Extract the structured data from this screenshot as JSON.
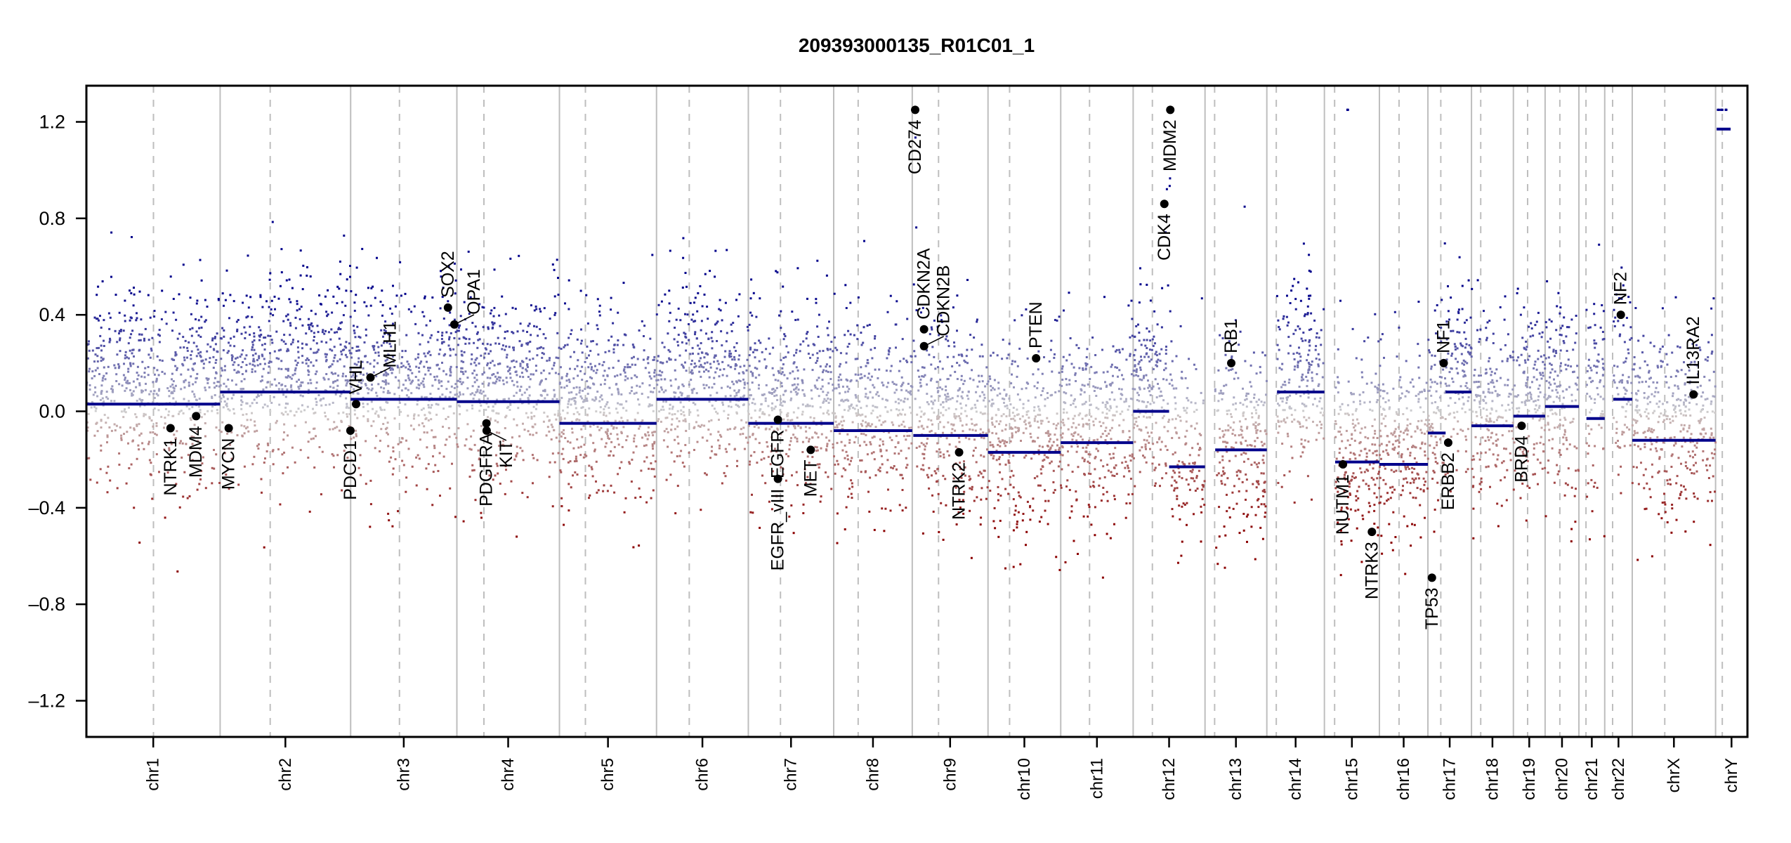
{
  "chart_data": {
    "type": "scatter",
    "title": "209393000135_R01C01_1",
    "xlabel": "",
    "ylabel": "",
    "ylim": [
      -1.35,
      1.35
    ],
    "grid": false,
    "legend": "none",
    "yticks": [
      {
        "value": 1.2,
        "label": "1.2"
      },
      {
        "value": 0.8,
        "label": "0.8"
      },
      {
        "value": 0.4,
        "label": "0.4"
      },
      {
        "value": 0.0,
        "label": "0.0"
      },
      {
        "value": -0.4,
        "label": "–0.4"
      },
      {
        "value": -0.8,
        "label": "–0.8"
      },
      {
        "value": -1.2,
        "label": "–1.2"
      }
    ],
    "colors": {
      "gain": "#00008b",
      "neutral": "#cfcfcf",
      "loss": "#8b0000",
      "segment": "#00008b",
      "boundary": "#bebebe",
      "gene": "#000000"
    },
    "chromosomes": [
      {
        "name": "chr1",
        "length_mb": 249.25,
        "centromere_mb": 125.0
      },
      {
        "name": "chr2",
        "length_mb": 243.2,
        "centromere_mb": 93.3
      },
      {
        "name": "chr3",
        "length_mb": 198.0,
        "centromere_mb": 91.0
      },
      {
        "name": "chr4",
        "length_mb": 191.15,
        "centromere_mb": 50.4
      },
      {
        "name": "chr5",
        "length_mb": 180.9,
        "centromere_mb": 48.4
      },
      {
        "name": "chr6",
        "length_mb": 171.1,
        "centromere_mb": 61.0
      },
      {
        "name": "chr7",
        "length_mb": 159.1,
        "centromere_mb": 59.9
      },
      {
        "name": "chr8",
        "length_mb": 146.4,
        "centromere_mb": 45.6
      },
      {
        "name": "chr9",
        "length_mb": 141.2,
        "centromere_mb": 49.0
      },
      {
        "name": "chr10",
        "length_mb": 135.5,
        "centromere_mb": 40.2
      },
      {
        "name": "chr11",
        "length_mb": 135.0,
        "centromere_mb": 53.7
      },
      {
        "name": "chr12",
        "length_mb": 133.9,
        "centromere_mb": 35.8
      },
      {
        "name": "chr13",
        "length_mb": 115.2,
        "centromere_mb": 17.9
      },
      {
        "name": "chr14",
        "length_mb": 107.3,
        "centromere_mb": 17.6
      },
      {
        "name": "chr15",
        "length_mb": 102.5,
        "centromere_mb": 19.0
      },
      {
        "name": "chr16",
        "length_mb": 90.4,
        "centromere_mb": 36.6
      },
      {
        "name": "chr17",
        "length_mb": 81.2,
        "centromere_mb": 24.0
      },
      {
        "name": "chr18",
        "length_mb": 78.1,
        "centromere_mb": 17.2
      },
      {
        "name": "chr19",
        "length_mb": 59.1,
        "centromere_mb": 26.5
      },
      {
        "name": "chr20",
        "length_mb": 63.0,
        "centromere_mb": 27.5
      },
      {
        "name": "chr21",
        "length_mb": 48.1,
        "centromere_mb": 13.2
      },
      {
        "name": "chr22",
        "length_mb": 51.3,
        "centromere_mb": 14.7
      },
      {
        "name": "chrX",
        "length_mb": 155.3,
        "centromere_mb": 60.6
      },
      {
        "name": "chrY",
        "length_mb": 59.4,
        "centromere_mb": 12.5
      }
    ],
    "segments": [
      {
        "chr": "chr1",
        "start_mb": 0,
        "end_mb": 249.25,
        "value": 0.03
      },
      {
        "chr": "chr2",
        "start_mb": 0,
        "end_mb": 243.2,
        "value": 0.08
      },
      {
        "chr": "chr3",
        "start_mb": 0,
        "end_mb": 198.0,
        "value": 0.05
      },
      {
        "chr": "chr4",
        "start_mb": 0,
        "end_mb": 191.15,
        "value": 0.04
      },
      {
        "chr": "chr5",
        "start_mb": 0,
        "end_mb": 180.9,
        "value": -0.05
      },
      {
        "chr": "chr6",
        "start_mb": 0,
        "end_mb": 171.1,
        "value": 0.05
      },
      {
        "chr": "chr7",
        "start_mb": 0,
        "end_mb": 159.1,
        "value": -0.05
      },
      {
        "chr": "chr8",
        "start_mb": 0,
        "end_mb": 146.4,
        "value": -0.08
      },
      {
        "chr": "chr9",
        "start_mb": 2,
        "end_mb": 141.2,
        "value": -0.1
      },
      {
        "chr": "chr10",
        "start_mb": 0,
        "end_mb": 135.5,
        "value": -0.17
      },
      {
        "chr": "chr11",
        "start_mb": 0,
        "end_mb": 135.0,
        "value": -0.13
      },
      {
        "chr": "chr12",
        "start_mb": 0,
        "end_mb": 67.0,
        "value": 0.0
      },
      {
        "chr": "chr12",
        "start_mb": 67.0,
        "end_mb": 133.9,
        "value": -0.23
      },
      {
        "chr": "chr13",
        "start_mb": 19.0,
        "end_mb": 115.2,
        "value": -0.16
      },
      {
        "chr": "chr14",
        "start_mb": 19.0,
        "end_mb": 107.3,
        "value": 0.08
      },
      {
        "chr": "chr15",
        "start_mb": 20.0,
        "end_mb": 102.5,
        "value": -0.21
      },
      {
        "chr": "chr16",
        "start_mb": 0,
        "end_mb": 90.4,
        "value": -0.22
      },
      {
        "chr": "chr17",
        "start_mb": 0,
        "end_mb": 33.0,
        "value": -0.09
      },
      {
        "chr": "chr17",
        "start_mb": 33.0,
        "end_mb": 81.2,
        "value": 0.08
      },
      {
        "chr": "chr18",
        "start_mb": 0,
        "end_mb": 78.1,
        "value": -0.06
      },
      {
        "chr": "chr19",
        "start_mb": 0,
        "end_mb": 59.1,
        "value": -0.02
      },
      {
        "chr": "chr20",
        "start_mb": 0,
        "end_mb": 63.0,
        "value": 0.02
      },
      {
        "chr": "chr21",
        "start_mb": 14.0,
        "end_mb": 48.1,
        "value": -0.03
      },
      {
        "chr": "chr22",
        "start_mb": 16.0,
        "end_mb": 51.3,
        "value": 0.05
      },
      {
        "chr": "chrX",
        "start_mb": 0,
        "end_mb": 155.3,
        "value": -0.12
      },
      {
        "chr": "chrY",
        "start_mb": 2,
        "end_mb": 28,
        "value": 1.17
      }
    ],
    "genes": [
      {
        "name": "NTRK1",
        "chr": "chr1",
        "pos_mb": 156.8,
        "value": -0.07
      },
      {
        "name": "MDM4",
        "chr": "chr1",
        "pos_mb": 204.5,
        "value": -0.02
      },
      {
        "name": "MYCN",
        "chr": "chr2",
        "pos_mb": 16.0,
        "value": -0.07
      },
      {
        "name": "PDCD1",
        "chr": "chr2",
        "pos_mb": 242.8,
        "value": -0.08
      },
      {
        "name": "VHL",
        "chr": "chr3",
        "pos_mb": 10.2,
        "value": 0.03
      },
      {
        "name": "MLH1",
        "chr": "chr3",
        "pos_mb": 37.0,
        "value": 0.14
      },
      {
        "name": "SOX2",
        "chr": "chr3",
        "pos_mb": 181.4,
        "value": 0.43
      },
      {
        "name": "OPA1",
        "chr": "chr3",
        "pos_mb": 193.3,
        "value": 0.36
      },
      {
        "name": "PDGFRA",
        "chr": "chr4",
        "pos_mb": 55.1,
        "value": -0.05
      },
      {
        "name": "KIT",
        "chr": "chr4",
        "pos_mb": 55.5,
        "value": -0.08
      },
      {
        "name": "EGFR",
        "chr": "chr7",
        "pos_mb": 55.2,
        "value": -0.035
      },
      {
        "name": "EGFR_vIII",
        "chr": "chr7",
        "pos_mb": 55.2,
        "value": -0.28
      },
      {
        "name": "MET",
        "chr": "chr7",
        "pos_mb": 116.3,
        "value": -0.16
      },
      {
        "name": "CD274",
        "chr": "chr9",
        "pos_mb": 5.45,
        "value": 1.25
      },
      {
        "name": "CDKN2A",
        "chr": "chr9",
        "pos_mb": 21.97,
        "value": 0.34
      },
      {
        "name": "CDKN2B",
        "chr": "chr9",
        "pos_mb": 22.0,
        "value": 0.27
      },
      {
        "name": "NTRK2",
        "chr": "chr9",
        "pos_mb": 87.3,
        "value": -0.17
      },
      {
        "name": "PTEN",
        "chr": "chr10",
        "pos_mb": 89.6,
        "value": 0.22
      },
      {
        "name": "CDK4",
        "chr": "chr12",
        "pos_mb": 58.1,
        "value": 0.86
      },
      {
        "name": "MDM2",
        "chr": "chr12",
        "pos_mb": 69.2,
        "value": 1.25
      },
      {
        "name": "RB1",
        "chr": "chr13",
        "pos_mb": 48.9,
        "value": 0.2
      },
      {
        "name": "NUTM1",
        "chr": "chr15",
        "pos_mb": 34.6,
        "value": -0.22
      },
      {
        "name": "NTRK3",
        "chr": "chr15",
        "pos_mb": 88.5,
        "value": -0.5
      },
      {
        "name": "TP53",
        "chr": "chr17",
        "pos_mb": 7.5,
        "value": -0.69
      },
      {
        "name": "NF1",
        "chr": "chr17",
        "pos_mb": 29.4,
        "value": 0.2
      },
      {
        "name": "ERBB2",
        "chr": "chr17",
        "pos_mb": 37.8,
        "value": -0.13
      },
      {
        "name": "BRD4",
        "chr": "chr19",
        "pos_mb": 15.3,
        "value": -0.06
      },
      {
        "name": "NF2",
        "chr": "chr22",
        "pos_mb": 30.0,
        "value": 0.4
      },
      {
        "name": "IL13RA2",
        "chr": "chrX",
        "pos_mb": 114.2,
        "value": 0.07
      }
    ]
  }
}
